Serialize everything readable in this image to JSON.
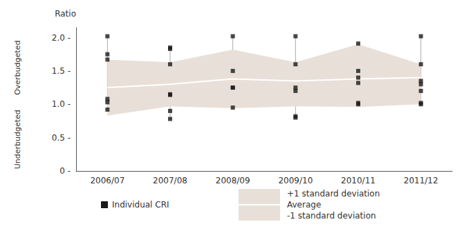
{
  "chart_data": {
    "type": "line",
    "categories": [
      "2006/07",
      "2007/08",
      "2008/09",
      "2009/10",
      "2010/11",
      "2011/12"
    ],
    "ylabel": "Ratio",
    "annotations": [
      "Overbudgeted",
      "Underbudgeted"
    ],
    "ylim": [
      0,
      2.15
    ],
    "yticks": [
      {
        "value": 0,
        "label": "0 -"
      },
      {
        "value": 0.5,
        "label": "0.5 -"
      },
      {
        "value": 1.0,
        "label": "1.0 -"
      },
      {
        "value": 1.5,
        "label": "1.5 -"
      },
      {
        "value": 2.0,
        "label": "2.0 -"
      }
    ],
    "grid": false,
    "legend": "bottom",
    "series": [
      {
        "name": "Individual CRI",
        "type": "scatter",
        "marker": "square",
        "color": "#1a1a1a",
        "values": [
          [
            2.02,
            1.75,
            1.67,
            1.08,
            1.03,
            0.92
          ],
          [
            1.85,
            1.83,
            1.6,
            1.15,
            1.14,
            0.9,
            0.78
          ],
          [
            2.02,
            1.5,
            1.25,
            1.25,
            0.95
          ],
          [
            2.02,
            1.6,
            1.25,
            1.2,
            0.82,
            0.8
          ],
          [
            1.91,
            1.5,
            1.4,
            1.32,
            1.02,
            1.0
          ],
          [
            2.02,
            1.6,
            1.35,
            1.3,
            1.2,
            1.02,
            1.0
          ]
        ]
      },
      {
        "type": "whisker",
        "color": "#aaaaaa",
        "values": [
          [
            0.92,
            2.02
          ],
          [
            0.78,
            1.85
          ],
          [
            0.95,
            2.02
          ],
          [
            0.8,
            2.02
          ],
          [
            1.0,
            1.91
          ],
          [
            1.0,
            2.02
          ]
        ]
      },
      {
        "name": "+1 standard deviation",
        "type": "band_upper",
        "color": "#e8e0d8",
        "values": [
          1.67,
          1.63,
          1.82,
          1.63,
          1.9,
          1.6
        ]
      },
      {
        "name": "Average",
        "type": "line",
        "color": "#ffffff",
        "values": [
          1.25,
          1.3,
          1.38,
          1.35,
          1.38,
          1.4
        ]
      },
      {
        "name": "-1 standard deviation",
        "type": "band_lower",
        "color": "#e8e0d8",
        "values": [
          0.83,
          0.97,
          0.94,
          0.97,
          0.96,
          1.0
        ]
      }
    ]
  }
}
